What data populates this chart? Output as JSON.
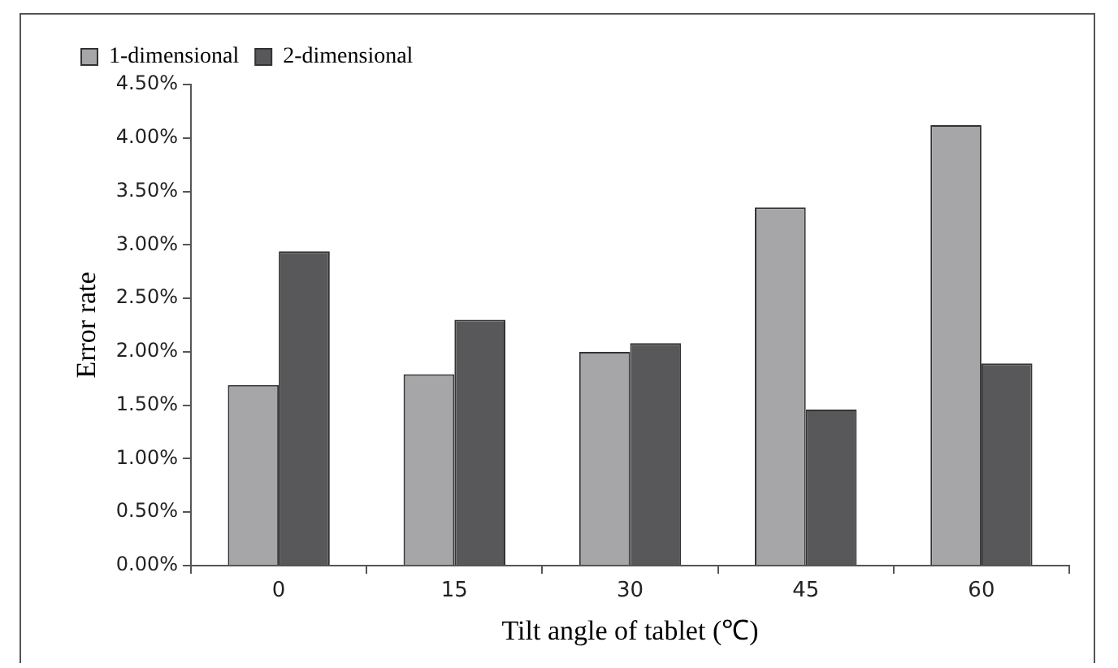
{
  "chart_data": {
    "type": "bar",
    "xlabel": "Tilt angle of tablet (℃)",
    "ylabel": "Error rate",
    "categories": [
      "0",
      "15",
      "30",
      "45",
      "60"
    ],
    "series": [
      {
        "name": "1-dimensional",
        "color": "#a6a6a8",
        "values": [
          1.69,
          1.79,
          2.0,
          3.35,
          4.12
        ]
      },
      {
        "name": "2-dimensional",
        "color": "#58585a",
        "values": [
          2.94,
          2.3,
          2.08,
          1.46,
          1.89
        ]
      }
    ],
    "ylim": [
      0,
      4.5
    ],
    "yticks": [
      {
        "value": 0,
        "label": "0.00%"
      },
      {
        "value": 0.5,
        "label": "0.50%"
      },
      {
        "value": 1,
        "label": "1.00%"
      },
      {
        "value": 1.5,
        "label": "1.50%"
      },
      {
        "value": 2,
        "label": "2.00%"
      },
      {
        "value": 2.5,
        "label": "2.50%"
      },
      {
        "value": 3,
        "label": "3.00%"
      },
      {
        "value": 3.5,
        "label": "3.50%"
      },
      {
        "value": 4,
        "label": "4.00%"
      },
      {
        "value": 4.5,
        "label": "4.50%"
      }
    ],
    "grid": false,
    "legend": "top"
  }
}
